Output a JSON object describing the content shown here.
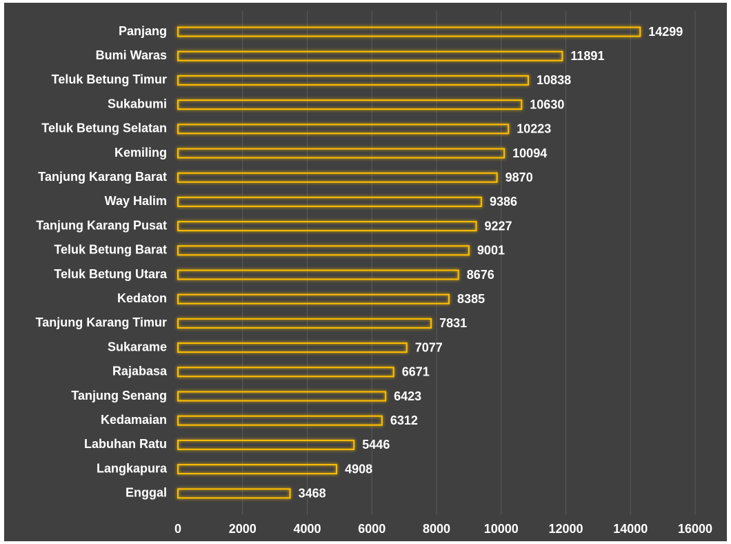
{
  "chart_data": {
    "type": "bar",
    "orientation": "horizontal",
    "categories": [
      "Panjang",
      "Bumi Waras",
      "Teluk Betung Timur",
      "Sukabumi",
      "Teluk Betung Selatan",
      "Kemiling",
      "Tanjung Karang Barat",
      "Way  Halim",
      "Tanjung Karang Pusat",
      "Teluk Betung Barat",
      "Teluk Betung Utara",
      "Kedaton",
      "Tanjung Karang Timur",
      "Sukarame",
      "Rajabasa",
      "Tanjung Senang",
      "Kedamaian",
      "Labuhan Ratu",
      "Langkapura",
      "Enggal"
    ],
    "values": [
      14299,
      11891,
      10838,
      10630,
      10223,
      10094,
      9870,
      9386,
      9227,
      9001,
      8676,
      8385,
      7831,
      7077,
      6671,
      6423,
      6312,
      5446,
      4908,
      3468
    ],
    "title": "",
    "xlabel": "",
    "ylabel": "",
    "xlim": [
      0,
      16000
    ],
    "xticks": [
      "0",
      "2000",
      "4000",
      "6000",
      "8000",
      "10000",
      "12000",
      "14000",
      "16000"
    ],
    "grid": true,
    "data_labels": true,
    "colors": {
      "background": "#404040",
      "bar_outline": "#ffc000",
      "bar_glow": "#c9a400",
      "text": "#ffffff",
      "grid": "#5a5a5a"
    }
  }
}
